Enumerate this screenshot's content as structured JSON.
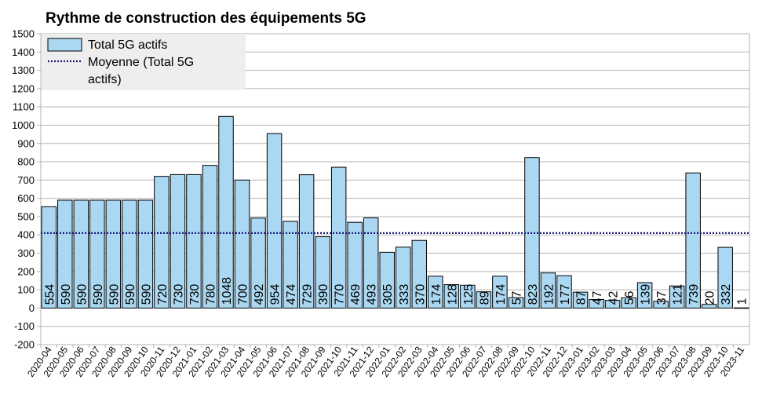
{
  "chart_data": {
    "type": "bar",
    "title": "Rythme de construction des équipements 5G",
    "xlabel": "",
    "ylabel": "",
    "ylim": [
      -200,
      1500
    ],
    "ytick_step": 100,
    "grid": "horizontal",
    "legend_position": "top-left",
    "categories": [
      "2020-04",
      "2020-05",
      "2020-06",
      "2020-07",
      "2020-08",
      "2020-09",
      "2020-10",
      "2020-11",
      "2020-12",
      "2021-01",
      "2021-02",
      "2021-03",
      "2021-04",
      "2021-05",
      "2021-06",
      "2021-07",
      "2021-08",
      "2021-09",
      "2021-10",
      "2021-11",
      "2021-12",
      "2022-01",
      "2022-02",
      "2022-03",
      "2022-04",
      "2022-05",
      "2022-06",
      "2022-07",
      "2022-08",
      "2022-09",
      "2022-10",
      "2022-11",
      "2022-12",
      "2023-01",
      "2023-02",
      "2023-03",
      "2023-04",
      "2023-05",
      "2023-06",
      "2023-07",
      "2023-08",
      "2023-09",
      "2023-10",
      "2023-11"
    ],
    "series": [
      {
        "name": "Total 5G actifs",
        "color": "#aad8f2",
        "values": [
          554,
          590,
          590,
          590,
          590,
          590,
          590,
          720,
          730,
          730,
          780,
          1048,
          700,
          492,
          954,
          474,
          729,
          390,
          770,
          469,
          493,
          305,
          333,
          370,
          174,
          128,
          125,
          89,
          174,
          57,
          823,
          192,
          177,
          87,
          47,
          42,
          56,
          139,
          37,
          121,
          739,
          20,
          332,
          1
        ]
      }
    ],
    "reference_lines": [
      {
        "name": "Moyenne (Total 5G actifs)",
        "value": 410,
        "color": "#1a1a7a",
        "style": "dotted"
      }
    ]
  }
}
